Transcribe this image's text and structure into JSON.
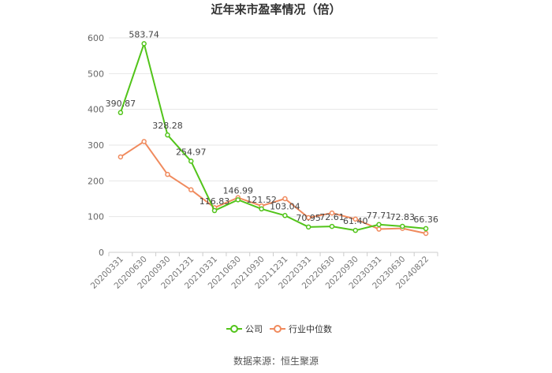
{
  "chart_data": {
    "type": "line",
    "title": "近年来市盈率情况（倍）",
    "categories": [
      "20200331",
      "20200630",
      "20200930",
      "20201231",
      "20210331",
      "20210630",
      "20210930",
      "20211231",
      "20220331",
      "20220630",
      "20220930",
      "20230331",
      "20230630",
      "20240822"
    ],
    "ylim": [
      0,
      600
    ],
    "yticks": [
      0,
      100,
      200,
      300,
      400,
      500,
      600
    ],
    "grid": true,
    "legend_position": "bottom-center",
    "series": [
      {
        "name": "公司",
        "color": "#52c41a",
        "values": [
          390.87,
          583.74,
          328.28,
          254.97,
          116.83,
          146.99,
          121.52,
          103.04,
          70.95,
          72.61,
          61.4,
          77.71,
          72.83,
          66.36
        ],
        "labels": [
          "390.87",
          "583.74",
          "328.28",
          "254.97",
          "116.83",
          "146.99",
          "121.52",
          "103.04",
          "70.95",
          "72.61",
          "61.40",
          "77.71",
          "72.83",
          "66.36"
        ]
      },
      {
        "name": "行业中位数",
        "color": "#f08a5d",
        "values": [
          267,
          310,
          218,
          175,
          125,
          153,
          130,
          150,
          97,
          110,
          93,
          65,
          67,
          53
        ]
      }
    ]
  },
  "source_text": "数据来源：恒生聚源"
}
